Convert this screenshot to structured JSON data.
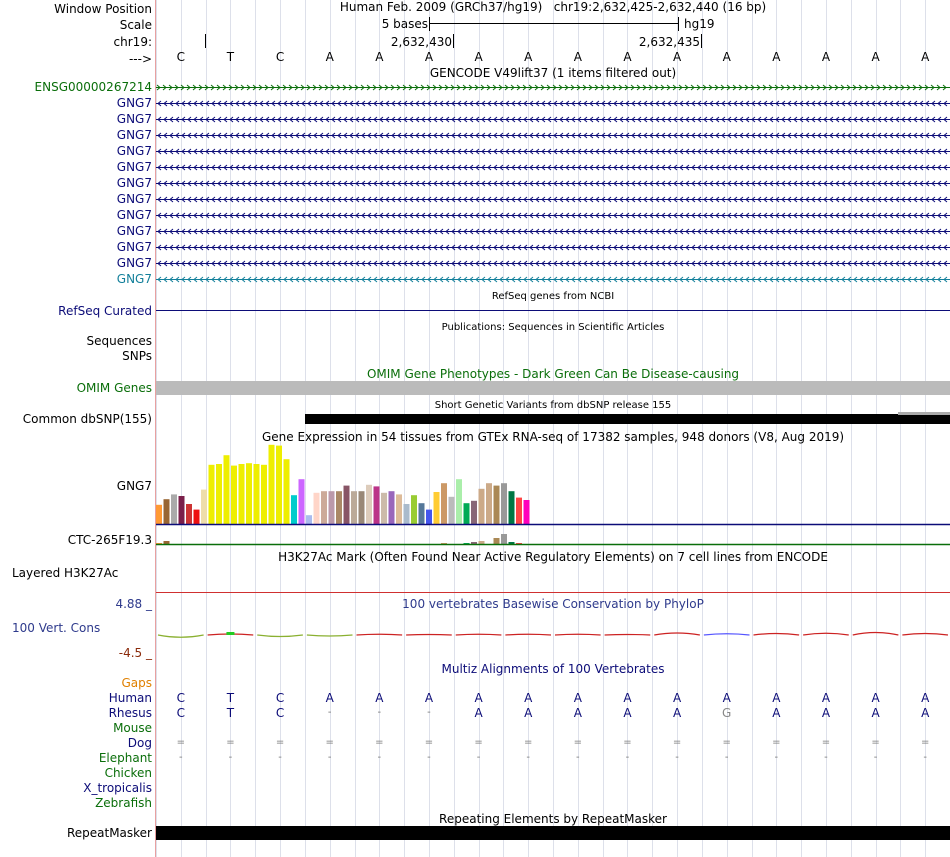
{
  "header": {
    "window_position_label": "Window Position",
    "scale_label": "Scale",
    "chrom_label": "chr19:",
    "strand_label": "--->",
    "title": "Human Feb. 2009 (GRCh37/hg19)   chr19:2,632,425-2,632,440 (16 bp)",
    "scale_text": "5 bases",
    "assembly": "hg19",
    "pos1": "2,632,430",
    "pos2": "2,632,435"
  },
  "bases": [
    "C",
    "T",
    "C",
    "A",
    "A",
    "A",
    "A",
    "A",
    "A",
    "A",
    "A",
    "A",
    "A",
    "A",
    "A",
    "A"
  ],
  "gencode": {
    "title": "GENCODE V49lift37 (1 items filtered out)",
    "first_label": "ENSG00000267214",
    "gene_labels": [
      "GNG7",
      "GNG7",
      "GNG7",
      "GNG7",
      "GNG7",
      "GNG7",
      "GNG7",
      "GNG7",
      "GNG7",
      "GNG7",
      "GNG7"
    ],
    "last_label": "GNG7",
    "colors": {
      "ensg": "#0a6e0a",
      "gene": "#0c0c78",
      "last": "#127f9a"
    }
  },
  "refseq": {
    "title": "RefSeq genes from NCBI",
    "label": "RefSeq Curated"
  },
  "publications": {
    "title": "Publications: Sequences in Scientific Articles",
    "label1": "Sequences",
    "label2": "SNPs"
  },
  "omim": {
    "title": "OMIM Gene Phenotypes - Dark Green Can Be Disease-causing",
    "label": "OMIM Genes"
  },
  "dbsnp": {
    "title": "Short Genetic Variants from dbSNP release 155",
    "label": "Common dbSNP(155)"
  },
  "gtex": {
    "title": "Gene Expression in 54 tissues from GTEx RNA-seq of 17382 samples, 948 donors (V8, Aug 2019)",
    "label": "GNG7",
    "label2": "CTC-265F19.3",
    "bars": [
      {
        "v": 0.24,
        "c": "#ff9933"
      },
      {
        "v": 0.31,
        "c": "#996633"
      },
      {
        "v": 0.37,
        "c": "#aaaaaa"
      },
      {
        "v": 0.35,
        "c": "#7a1f4a"
      },
      {
        "v": 0.25,
        "c": "#cc3333"
      },
      {
        "v": 0.18,
        "c": "#ee1111"
      },
      {
        "v": 0.43,
        "c": "#eeddaa"
      },
      {
        "v": 0.74,
        "c": "#eeee00"
      },
      {
        "v": 0.75,
        "c": "#eeee00"
      },
      {
        "v": 0.86,
        "c": "#eeee00"
      },
      {
        "v": 0.73,
        "c": "#eeee00"
      },
      {
        "v": 0.75,
        "c": "#eeee00"
      },
      {
        "v": 0.76,
        "c": "#eeee00"
      },
      {
        "v": 0.75,
        "c": "#eeee00"
      },
      {
        "v": 0.74,
        "c": "#eeee00"
      },
      {
        "v": 0.99,
        "c": "#eeee00"
      },
      {
        "v": 0.98,
        "c": "#eeee00"
      },
      {
        "v": 0.81,
        "c": "#eeee00"
      },
      {
        "v": 0.36,
        "c": "#00cccc"
      },
      {
        "v": 0.56,
        "c": "#cc66ff"
      },
      {
        "v": 0.11,
        "c": "#aabbee"
      },
      {
        "v": 0.39,
        "c": "#ffd5c8"
      },
      {
        "v": 0.41,
        "c": "#ccaa99"
      },
      {
        "v": 0.41,
        "c": "#bb99aa"
      },
      {
        "v": 0.41,
        "c": "#aa8866"
      },
      {
        "v": 0.48,
        "c": "#885566"
      },
      {
        "v": 0.41,
        "c": "#bbaa99"
      },
      {
        "v": 0.41,
        "c": "#998877"
      },
      {
        "v": 0.49,
        "c": "#ddccbb"
      },
      {
        "v": 0.47,
        "c": "#bb3388"
      },
      {
        "v": 0.39,
        "c": "#ccbbaa"
      },
      {
        "v": 0.41,
        "c": "#9966bb"
      },
      {
        "v": 0.37,
        "c": "#ddbb99"
      },
      {
        "v": 0.25,
        "c": "#aabbcc"
      },
      {
        "v": 0.36,
        "c": "#99cc33"
      },
      {
        "v": 0.26,
        "c": "#557799"
      },
      {
        "v": 0.18,
        "c": "#4455ee"
      },
      {
        "v": 0.4,
        "c": "#ffcc33"
      },
      {
        "v": 0.51,
        "c": "#cc9966"
      },
      {
        "v": 0.34,
        "c": "#bbbbbb"
      },
      {
        "v": 0.56,
        "c": "#aaeeaa"
      },
      {
        "v": 0.26,
        "c": "#00aa55"
      },
      {
        "v": 0.29,
        "c": "#886677"
      },
      {
        "v": 0.44,
        "c": "#ccaa88"
      },
      {
        "v": 0.51,
        "c": "#ccaa88"
      },
      {
        "v": 0.48,
        "c": "#aa8855"
      },
      {
        "v": 0.51,
        "c": "#999999"
      },
      {
        "v": 0.41,
        "c": "#007744"
      },
      {
        "v": 0.33,
        "c": "#ff4444"
      },
      {
        "v": 0.3,
        "c": "#ff00bb"
      }
    ],
    "bars2": [
      0.1,
      0.3,
      0,
      0,
      0,
      0,
      0,
      0,
      0,
      0,
      0,
      0,
      0,
      0,
      0,
      0,
      0,
      0,
      0,
      0,
      0,
      0,
      0,
      0,
      0,
      0,
      0,
      0,
      0,
      0,
      0,
      0,
      0,
      0,
      0,
      0,
      0,
      0,
      0.1,
      0,
      0,
      0.1,
      0.2,
      0.3,
      0,
      0.6,
      1.0,
      0.2,
      0.1,
      0
    ]
  },
  "h3k27ac": {
    "title": "H3K27Ac Mark (Often Found Near Active Regulatory Elements) on 7 cell lines from ENCODE",
    "label": "Layered H3K27Ac"
  },
  "phylop": {
    "title": "100 vertebrates Basewise Conservation by PhyloP",
    "label": "100 Vert. Cons",
    "max_label": "4.88 _",
    "min_label": "-4.5 _",
    "values": [
      -0.9,
      0.4,
      -0.6,
      -0.4,
      0.3,
      0.2,
      0.3,
      0.3,
      0.3,
      0.2,
      0.8,
      0.5,
      0.6,
      0.7,
      1.0,
      0.6
    ]
  },
  "multiz": {
    "title": "Multiz Alignments of 100 Vertebrates",
    "rows": [
      {
        "species": "Gaps",
        "color": "#e08000",
        "cells": []
      },
      {
        "species": "Human",
        "color": "#0c0c78",
        "cells": [
          "C",
          "T",
          "C",
          "A",
          "A",
          "A",
          "A",
          "A",
          "A",
          "A",
          "A",
          "A",
          "A",
          "A",
          "A",
          "A"
        ]
      },
      {
        "species": "Rhesus",
        "color": "#0c0c78",
        "cells": [
          "C",
          "T",
          "C",
          "-",
          "-",
          "-",
          "A",
          "A",
          "A",
          "A",
          "A",
          "G",
          "A",
          "A",
          "A",
          "A"
        ]
      },
      {
        "species": "Mouse",
        "color": "#0a6e0a",
        "cells": []
      },
      {
        "species": "Dog",
        "color": "#0c0c78",
        "cells": [
          "=",
          "=",
          "=",
          "=",
          "=",
          "=",
          "=",
          "=",
          "=",
          "=",
          "=",
          "=",
          "=",
          "=",
          "=",
          "="
        ]
      },
      {
        "species": "Elephant",
        "color": "#0a6e0a",
        "cells": [
          "-",
          "-",
          "-",
          "-",
          "-",
          "-",
          "-",
          "-",
          "-",
          "-",
          "-",
          "-",
          "-",
          "-",
          "-",
          "-"
        ]
      },
      {
        "species": "Chicken",
        "color": "#0a6e0a",
        "cells": []
      },
      {
        "species": "X_tropicalis",
        "color": "#0c0c78",
        "cells": []
      },
      {
        "species": "Zebrafish",
        "color": "#0a6e0a",
        "cells": []
      }
    ]
  },
  "repeatmasker": {
    "title": "Repeating Elements by RepeatMasker",
    "label": "RepeatMasker"
  }
}
